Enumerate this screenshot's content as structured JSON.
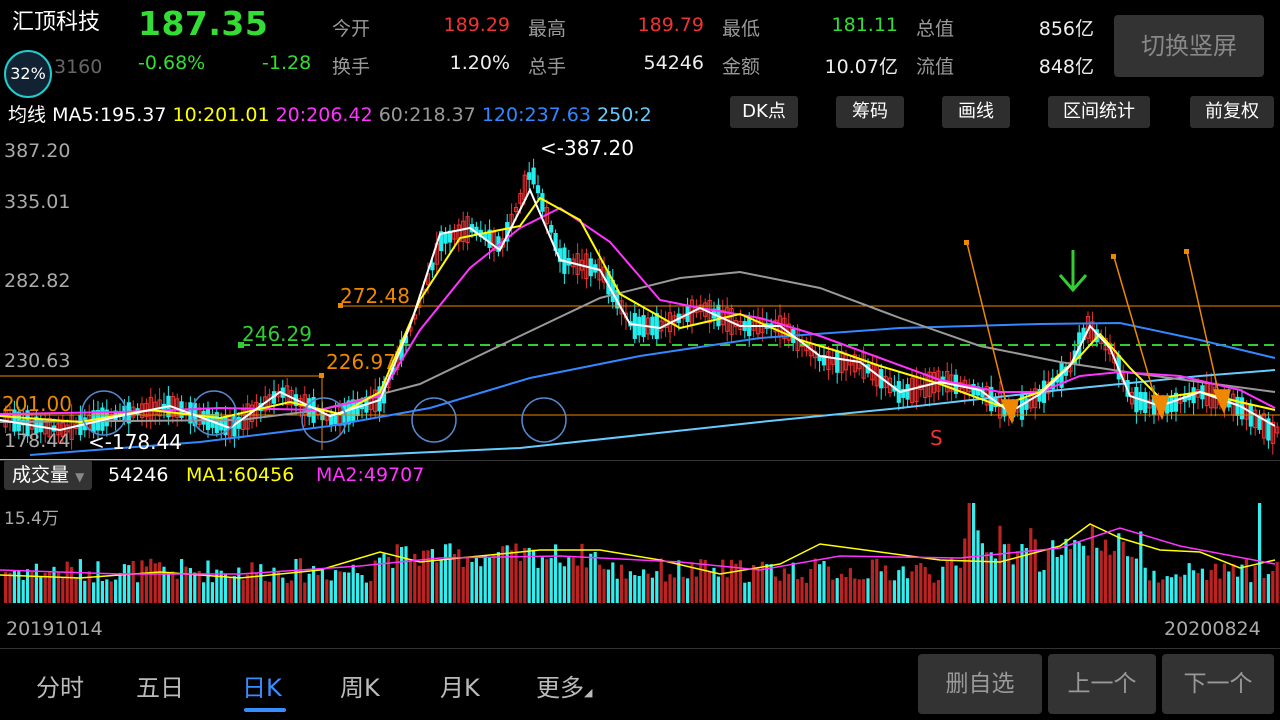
{
  "stock": {
    "name": "汇顶科技",
    "price": "187.35",
    "change_pct": "-0.68%",
    "change": "-1.28",
    "code": "3160",
    "progress_badge": "32%"
  },
  "quote": {
    "open_label": "今开",
    "open": "189.29",
    "high_label": "最高",
    "high": "189.79",
    "low_label": "最低",
    "low": "181.11",
    "mktcap_label": "总值",
    "mktcap": "856亿",
    "turnover_label": "换手",
    "turnover": "1.20%",
    "volume_label": "总手",
    "volume": "54246",
    "amount_label": "金额",
    "amount": "10.07亿",
    "float_label": "流值",
    "float": "848亿"
  },
  "switch_label": "切换竖屏",
  "ma_bar": {
    "title": "均线",
    "ma5": "MA5:195.37",
    "ma10": "10:201.01",
    "ma20": "20:206.42",
    "ma60": "60:218.37",
    "ma120": "120:237.63",
    "ma250": "250:2"
  },
  "tool_buttons": [
    "DK点",
    "筹码",
    "画线",
    "区间统计",
    "前复权"
  ],
  "price_axis": [
    "387.20",
    "335.01",
    "282.82",
    "230.63",
    "178.44"
  ],
  "annotations": {
    "peak": "<-387.20",
    "low": "<-178.44",
    "h272": "272.48",
    "h246": "246.29",
    "h226": "226.97",
    "h201": "201.00",
    "signal": "S"
  },
  "volume": {
    "label": "成交量",
    "value": "54246",
    "ma1": "MA1:60456",
    "ma2": "MA2:49707",
    "max": "15.4万"
  },
  "dates": {
    "start": "20191014",
    "end": "20200824"
  },
  "tabs": [
    "分时",
    "五日",
    "日K",
    "周K",
    "月K",
    "更多"
  ],
  "active_tab": "日K",
  "actions": [
    "删自选",
    "上一个",
    "下一个"
  ],
  "colors": {
    "up": "#e33",
    "down": "#2ee",
    "ma5": "#ffffff",
    "ma10": "#ffff00",
    "ma20": "#ff33ff",
    "ma60": "#999999",
    "ma120": "#3388ff",
    "ma250": "#66ccff"
  }
}
